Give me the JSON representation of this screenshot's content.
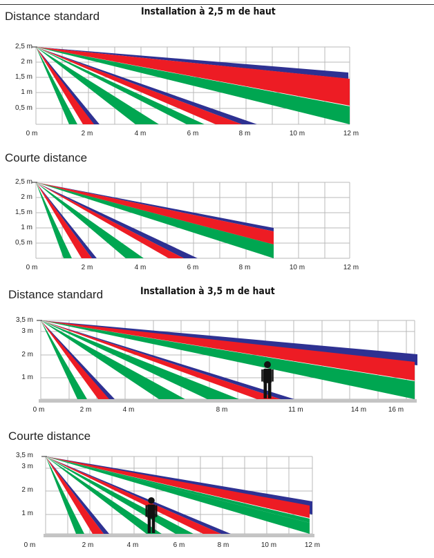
{
  "colors": {
    "blue": "#2e3192",
    "red": "#ed1c24",
    "green": "#00a651",
    "grid": "#b8b8b8",
    "ground": "#c4c4c4",
    "person": "#111111"
  },
  "sections": [
    {
      "title": "Distance standard",
      "install_title": "Installation à 2,5 m de haut",
      "y_ticks": [
        "2,5 m",
        "2 m",
        "1,5 m",
        "1 m",
        "0,5 m"
      ],
      "x_ticks": [
        "0 m",
        "2 m",
        "4 m",
        "6 m",
        "8 m",
        "10 m",
        "12 m"
      ]
    },
    {
      "title": "Courte distance",
      "install_title": "",
      "y_ticks": [
        "2,5 m",
        "2 m",
        "1,5 m",
        "1 m",
        "0,5 m"
      ],
      "x_ticks": [
        "0 m",
        "2 m",
        "4 m",
        "6 m",
        "8 m",
        "10 m",
        "12 m"
      ]
    },
    {
      "title": "Distance standard",
      "install_title": "Installation à 3,5 m de haut",
      "y_ticks": [
        "3,5 m",
        "3 m",
        "2 m",
        "1 m"
      ],
      "x_ticks": [
        "0 m",
        "2 m",
        "4 m",
        "8 m",
        "11 m",
        "14 m",
        "16 m"
      ],
      "has_person": true
    },
    {
      "title": "Courte distance",
      "install_title": "",
      "y_ticks": [
        "3,5 m",
        "3 m",
        "2 m",
        "1 m"
      ],
      "x_ticks": [
        "0 m",
        "2 m",
        "4 m",
        "6 m",
        "8 m",
        "10 m",
        "12 m"
      ],
      "has_person": true
    }
  ]
}
